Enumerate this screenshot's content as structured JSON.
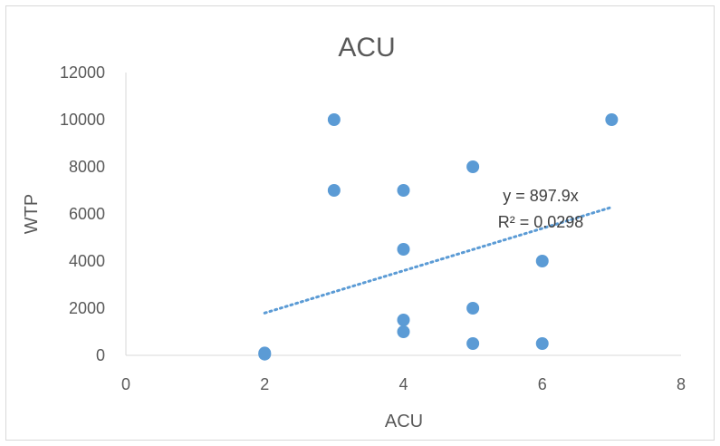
{
  "chart_data": {
    "type": "scatter",
    "title": "ACU",
    "xlabel": "ACU",
    "ylabel": "WTP",
    "xlim": [
      0,
      8
    ],
    "ylim": [
      0,
      12000
    ],
    "x_ticks": [
      "0",
      "2",
      "4",
      "6",
      "8"
    ],
    "y_ticks": [
      "0",
      "2000",
      "4000",
      "6000",
      "8000",
      "10000",
      "12000"
    ],
    "grid": false,
    "legend": "none",
    "series": [
      {
        "color": "#5b9bd5",
        "points": [
          {
            "x": 2,
            "y": 100
          },
          {
            "x": 2,
            "y": 50
          },
          {
            "x": 3,
            "y": 10000
          },
          {
            "x": 3,
            "y": 7000
          },
          {
            "x": 4,
            "y": 7000
          },
          {
            "x": 4,
            "y": 4500
          },
          {
            "x": 4,
            "y": 1500
          },
          {
            "x": 4,
            "y": 1000
          },
          {
            "x": 5,
            "y": 8000
          },
          {
            "x": 5,
            "y": 2000
          },
          {
            "x": 5,
            "y": 500
          },
          {
            "x": 6,
            "y": 4000
          },
          {
            "x": 6,
            "y": 500
          },
          {
            "x": 7,
            "y": 10000
          }
        ]
      }
    ],
    "trendline": {
      "type": "linear",
      "slope": 897.9,
      "intercept": 0,
      "x_range": [
        2,
        7
      ],
      "equation": "y = 897.9x",
      "r_squared": "R² = 0.0298",
      "color": "#5b9bd5",
      "style": "dotted"
    }
  }
}
